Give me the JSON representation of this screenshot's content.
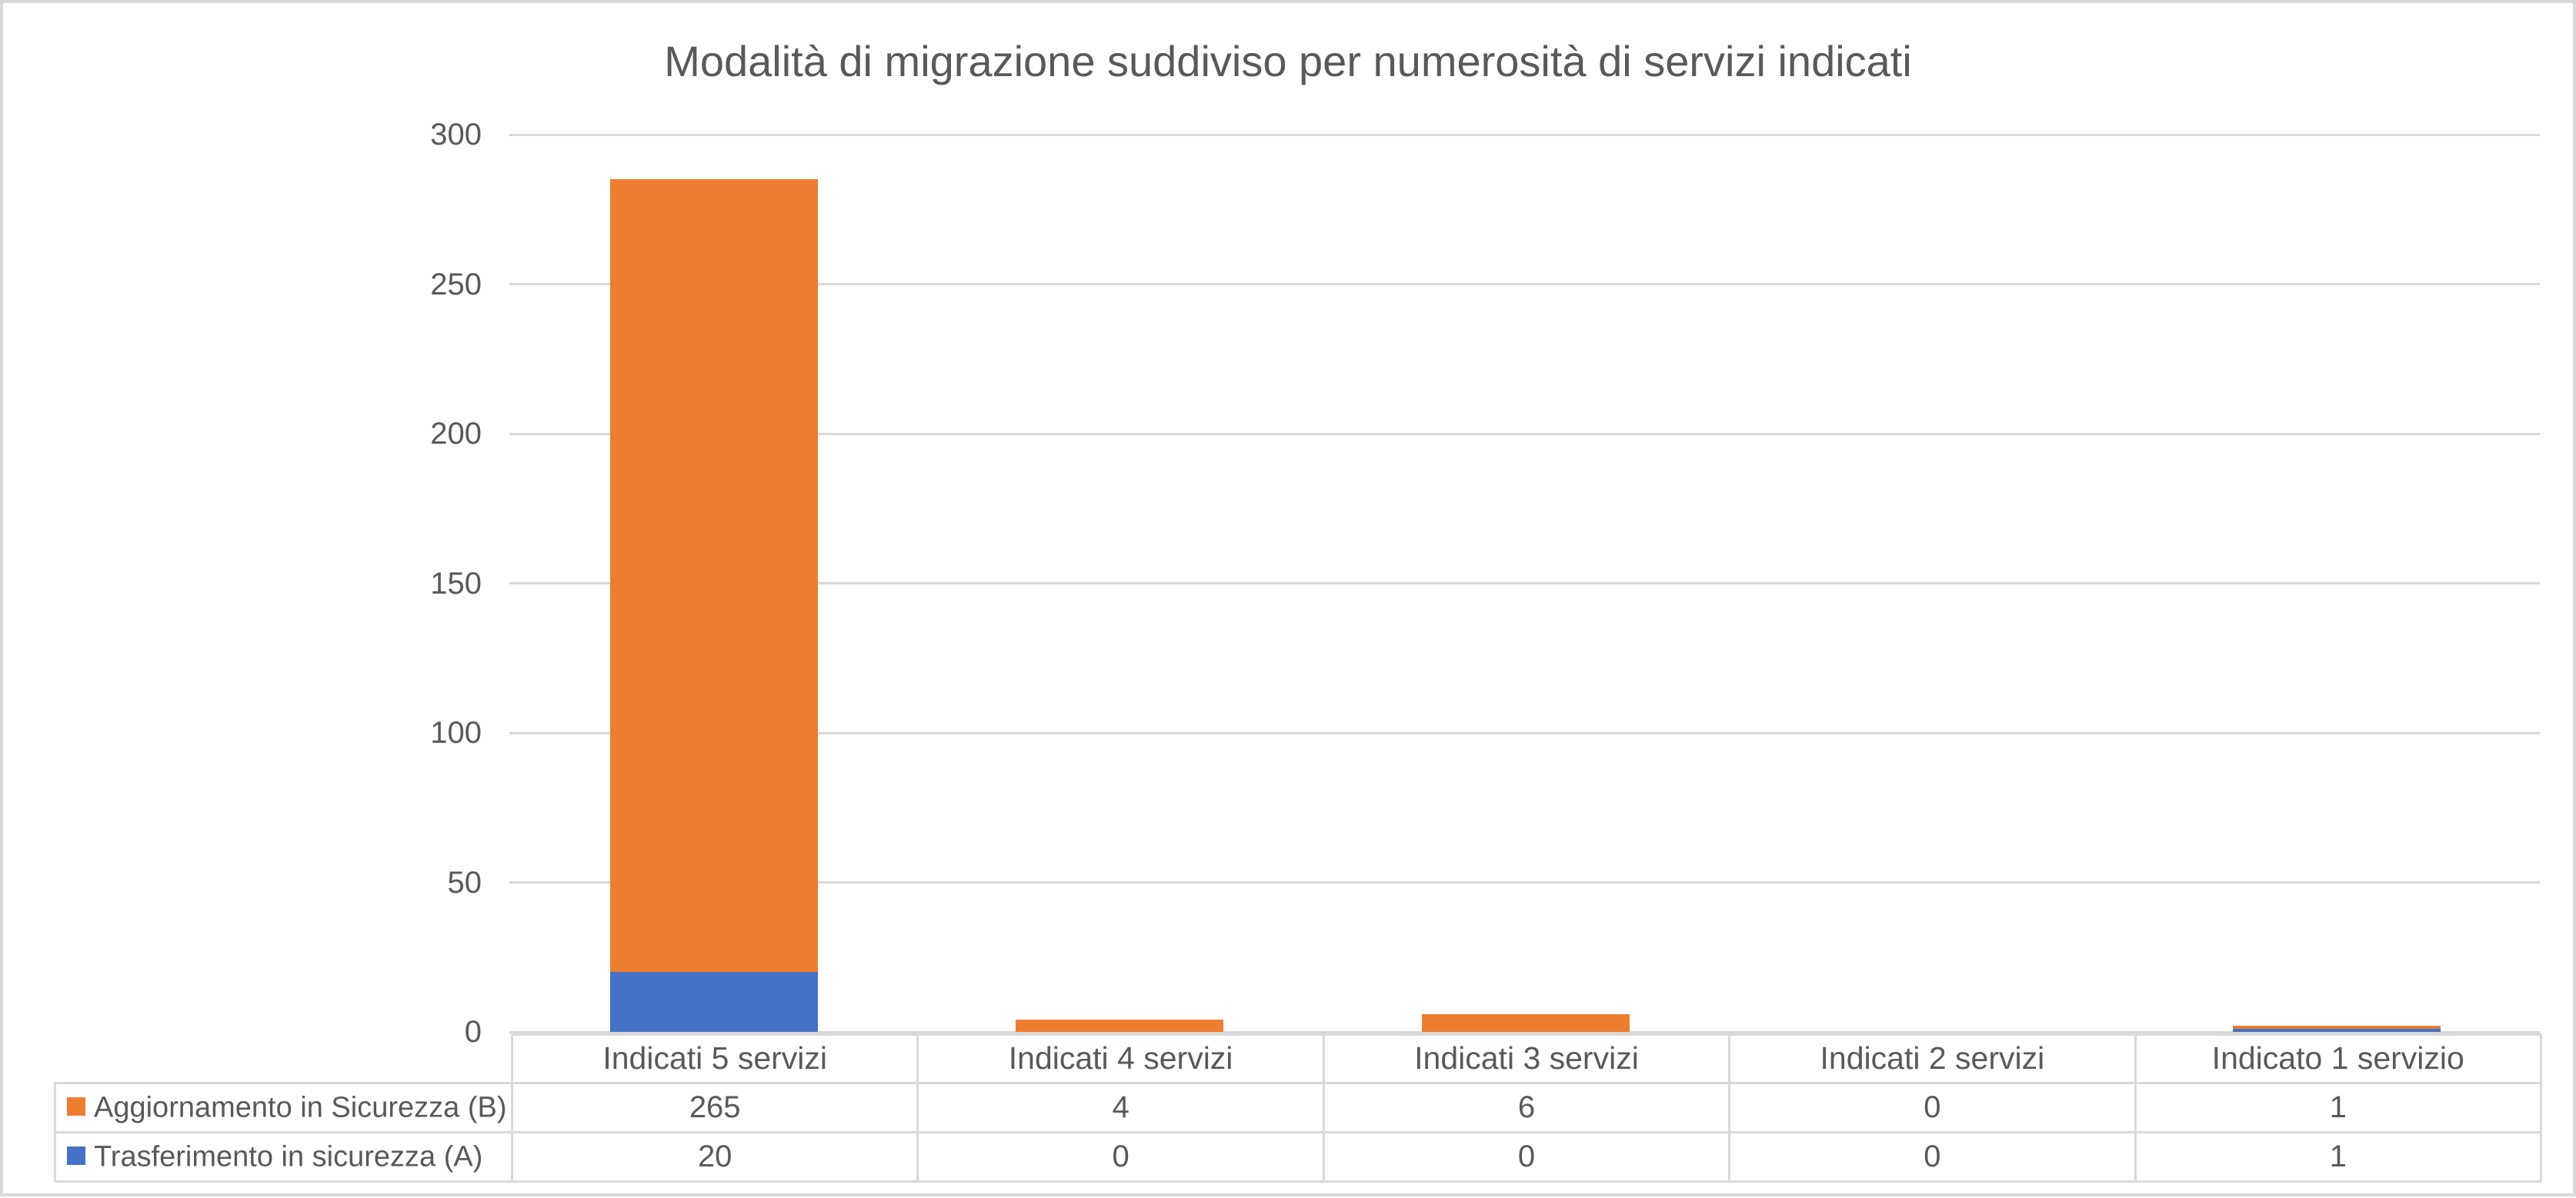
{
  "chart_data": {
    "type": "bar",
    "stacked": true,
    "title": "Modalità di migrazione suddiviso per numerosità di servizi indicati",
    "xlabel": "",
    "ylabel": "",
    "categories": [
      "Indicati 5 servizi",
      "Indicati 4 servizi",
      "Indicati 3 servizi",
      "Indicati 2 servizi",
      "Indicato 1 servizio"
    ],
    "series": [
      {
        "name": "Aggiornamento in Sicurezza (B)",
        "color": "#ED7D31",
        "stack_position": "top",
        "values": [
          265,
          4,
          6,
          0,
          1
        ]
      },
      {
        "name": "Trasferimento in sicurezza (A)",
        "color": "#4472C4",
        "stack_position": "bottom",
        "values": [
          20,
          0,
          0,
          0,
          1
        ]
      }
    ],
    "ylim": [
      0,
      300
    ],
    "yticks": [
      0,
      50,
      100,
      150,
      200,
      250,
      300
    ],
    "grid": true,
    "legend_position": "data-table-left",
    "data_table_shown": true,
    "colors": {
      "text": "#595959",
      "gridline": "#D9D9D9",
      "table_border": "#D9D9D9",
      "chart_border": "#D9D9D9",
      "background": "#FFFFFF"
    }
  }
}
